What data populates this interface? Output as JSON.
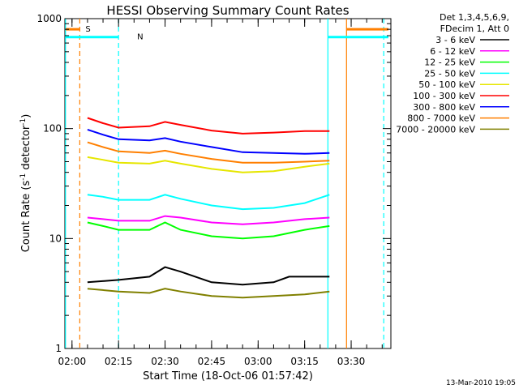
{
  "chart_data": {
    "type": "line",
    "title": "HESSI Observing Summary Count Rates",
    "xlabel": "Start Time (18-Oct-06 01:57:42)",
    "ylabel_main": "Count Rate (s",
    "ylabel_sup1": "-1",
    "ylabel_mid": " detector",
    "ylabel_sup2": "-1",
    "ylabel_end": ")",
    "y_scale": "log",
    "ylim": [
      1,
      1000
    ],
    "x_tick_labels": [
      "02:00",
      "02:15",
      "02:30",
      "02:45",
      "03:00",
      "03:15",
      "03:30"
    ],
    "x_tick_minutes": [
      120,
      135,
      150,
      165,
      180,
      195,
      210
    ],
    "xlim_minutes": [
      117.7,
      222.8
    ],
    "y_tick_labels": [
      "1",
      "10",
      "100",
      "1000"
    ],
    "y_tick_values": [
      1,
      10,
      100,
      1000
    ],
    "legend_header": [
      "Det 1,3,4,5,6,9,",
      "FDecim 1, Att 0"
    ],
    "legend_placement": "outside-right",
    "series": [
      {
        "name": "3 - 6 keV",
        "color": "#000000",
        "x_minutes": [
          125,
          135,
          145,
          150,
          155,
          165,
          175,
          185,
          190,
          195,
          203
        ],
        "values": [
          4,
          4.2,
          4.5,
          5.5,
          5,
          4,
          3.8,
          4,
          4.5,
          4.5,
          4.5
        ]
      },
      {
        "name": "6 - 12 keV",
        "color": "#ff00ff",
        "x_minutes": [
          125,
          130,
          135,
          145,
          150,
          155,
          165,
          175,
          185,
          195,
          203
        ],
        "values": [
          15.5,
          15,
          14.5,
          14.5,
          16,
          15.5,
          14,
          13.5,
          14,
          15,
          15.5
        ]
      },
      {
        "name": "12 - 25 keV",
        "color": "#00ff00",
        "x_minutes": [
          125,
          130,
          135,
          145,
          150,
          155,
          165,
          175,
          185,
          195,
          203
        ],
        "values": [
          14,
          13,
          12,
          12,
          14,
          12,
          10.5,
          10,
          10.5,
          12,
          13
        ]
      },
      {
        "name": "25 - 50 keV",
        "color": "#00ffff",
        "x_minutes": [
          125,
          130,
          135,
          145,
          150,
          155,
          165,
          175,
          185,
          195,
          203
        ],
        "values": [
          25,
          24,
          22.5,
          22.5,
          25,
          23,
          20,
          18.5,
          19,
          21,
          25
        ]
      },
      {
        "name": "50 - 100 keV",
        "color": "#e6e600",
        "x_minutes": [
          125,
          130,
          135,
          145,
          150,
          155,
          165,
          175,
          185,
          195,
          203
        ],
        "values": [
          55,
          52,
          49,
          48,
          51,
          48,
          43,
          40,
          41,
          45,
          48
        ]
      },
      {
        "name": "100 - 300 keV",
        "color": "#ff0000",
        "x_minutes": [
          125,
          130,
          135,
          145,
          150,
          155,
          165,
          175,
          185,
          195,
          203
        ],
        "values": [
          125,
          112,
          102,
          105,
          115,
          108,
          96,
          90,
          92,
          95,
          95
        ]
      },
      {
        "name": "300 - 800 keV",
        "color": "#0000ff",
        "x_minutes": [
          125,
          130,
          135,
          145,
          150,
          155,
          165,
          175,
          185,
          195,
          203
        ],
        "values": [
          98,
          88,
          80,
          78,
          82,
          76,
          68,
          61,
          60,
          59,
          60
        ]
      },
      {
        "name": "800 - 7000 keV",
        "color": "#ff7f00",
        "x_minutes": [
          125,
          130,
          135,
          145,
          150,
          155,
          165,
          175,
          185,
          195,
          203
        ],
        "values": [
          75,
          68,
          62,
          60,
          63,
          59,
          53,
          49,
          49,
          50,
          51
        ]
      },
      {
        "name": "7000 - 20000 keV",
        "color": "#808000",
        "x_minutes": [
          125,
          135,
          145,
          150,
          155,
          165,
          175,
          185,
          195,
          203
        ],
        "values": [
          3.5,
          3.3,
          3.2,
          3.5,
          3.3,
          3,
          2.9,
          3,
          3.1,
          3.3
        ]
      }
    ],
    "flags": [
      {
        "label": "S",
        "color": "#ff7f00",
        "y_value": 800,
        "segments_minutes": [
          [
            118,
            122.5
          ],
          [
            208.5,
            222
          ]
        ]
      },
      {
        "label": "N",
        "color": "#00ffff",
        "y_value": 680,
        "segments_minutes": [
          [
            118,
            135
          ],
          [
            202.5,
            222
          ]
        ]
      }
    ],
    "markers": [
      {
        "minute": 117.9,
        "color": "#00ffff",
        "style": "solid"
      },
      {
        "minute": 122.5,
        "color": "#ff7f00",
        "style": "dashed"
      },
      {
        "minute": 135.0,
        "color": "#00ffff",
        "style": "dashed"
      },
      {
        "minute": 202.5,
        "color": "#00ffff",
        "style": "solid"
      },
      {
        "minute": 208.5,
        "color": "#ff7f00",
        "style": "solid"
      },
      {
        "minute": 220.5,
        "color": "#00ffff",
        "style": "dashed"
      }
    ],
    "grid": false
  },
  "footer": {
    "stamp": "13-Mar-2010 19:05"
  }
}
